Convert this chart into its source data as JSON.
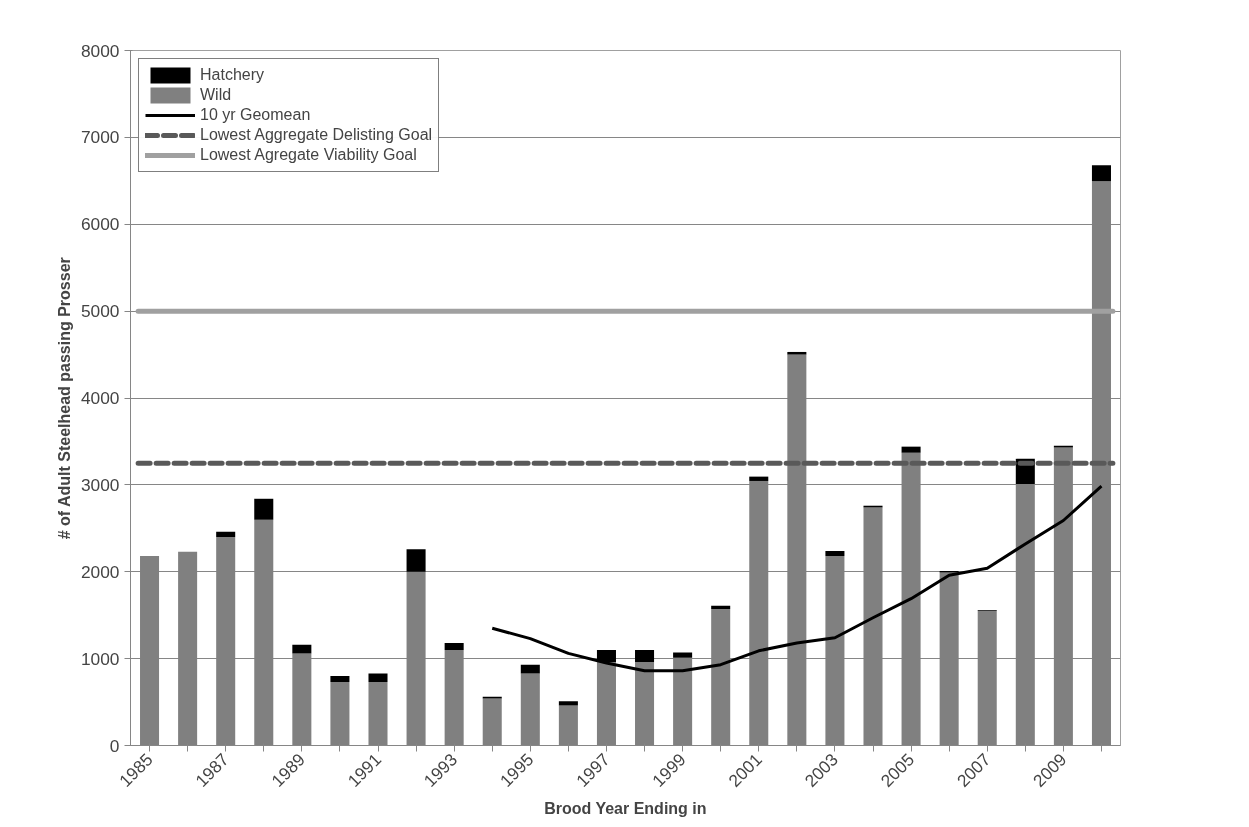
{
  "chart_data": {
    "type": "bar",
    "stacked": true,
    "xlabel": "Brood Year Ending in",
    "ylabel": "# of Adult Steelhead passing Prosser",
    "categories": [
      "1985",
      null,
      "1987",
      null,
      "1989",
      null,
      "1991",
      null,
      "1993",
      null,
      "1995",
      null,
      "1997",
      null,
      "1999",
      null,
      "2001",
      null,
      "2003",
      null,
      "2005",
      null,
      "2007",
      null,
      "2009",
      null
    ],
    "series": [
      {
        "name": "Wild",
        "color": "#808080",
        "values": [
          2180,
          2230,
          2400,
          2600,
          1060,
          730,
          730,
          2000,
          1100,
          540,
          830,
          460,
          960,
          960,
          1010,
          1570,
          3045,
          4500,
          2180,
          2740,
          3370,
          1990,
          1550,
          3010,
          3430,
          6495
        ]
      },
      {
        "name": "Hatchery",
        "color": "#000000",
        "values": [
          0,
          0,
          60,
          240,
          100,
          70,
          100,
          260,
          80,
          20,
          100,
          50,
          140,
          140,
          60,
          40,
          50,
          30,
          60,
          20,
          70,
          20,
          10,
          290,
          20,
          185
        ]
      },
      {
        "name": "10 yr Geomean",
        "type": "line",
        "color": "#000000",
        "values": [
          null,
          null,
          null,
          null,
          null,
          null,
          null,
          null,
          null,
          1350,
          1230,
          1060,
          950,
          860,
          860,
          930,
          1090,
          1180,
          1240,
          1470,
          1690,
          1960,
          2040,
          2320,
          2590,
          2985
        ]
      }
    ],
    "ref_lines": [
      {
        "axis": "y",
        "value": 3250,
        "label": "Lowest Aggregate Delisting Goal",
        "color": "#595959",
        "line_style": "dashed"
      },
      {
        "axis": "y",
        "value": 5000,
        "label": "Lowest Agregate Viability Goal",
        "color": "#a0a0a0",
        "line_style": "solid"
      }
    ],
    "ylim": [
      0,
      8000
    ],
    "yticks": [
      0,
      1000,
      2000,
      3000,
      4000,
      5000,
      6000,
      7000,
      8000
    ],
    "grid": "y",
    "legend": "top left"
  }
}
